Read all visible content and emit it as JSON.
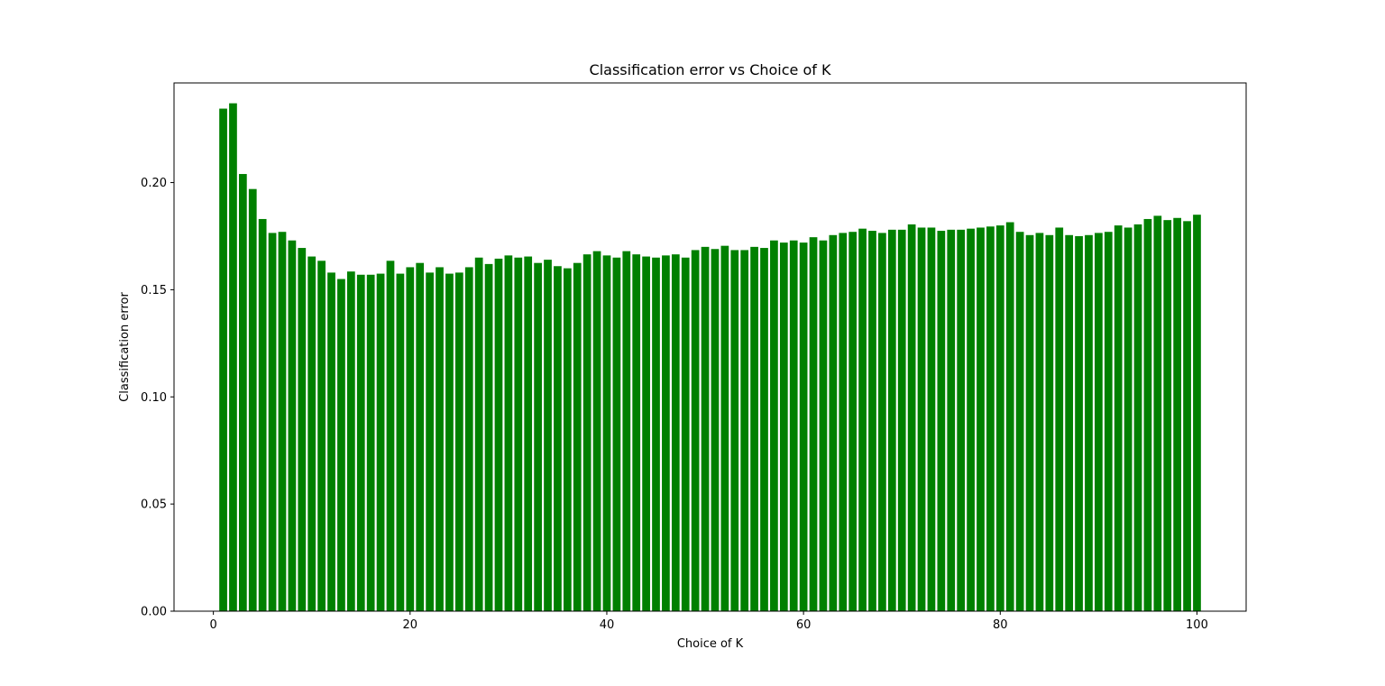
{
  "chart_data": {
    "type": "bar",
    "title": "Classification error vs Choice of K",
    "xlabel": "Choice of K",
    "ylabel": "Classification error",
    "xlim": [
      -4,
      105
    ],
    "ylim": [
      0,
      0.2465
    ],
    "xticks": [
      0,
      20,
      40,
      60,
      80,
      100
    ],
    "xtick_labels": [
      "0",
      "20",
      "40",
      "60",
      "80",
      "100"
    ],
    "yticks": [
      0.0,
      0.05,
      0.1,
      0.15,
      0.2
    ],
    "ytick_labels": [
      "0.00",
      "0.05",
      "0.10",
      "0.15",
      "0.20"
    ],
    "bar_color": "#008000",
    "grid": false,
    "x": [
      1,
      2,
      3,
      4,
      5,
      6,
      7,
      8,
      9,
      10,
      11,
      12,
      13,
      14,
      15,
      16,
      17,
      18,
      19,
      20,
      21,
      22,
      23,
      24,
      25,
      26,
      27,
      28,
      29,
      30,
      31,
      32,
      33,
      34,
      35,
      36,
      37,
      38,
      39,
      40,
      41,
      42,
      43,
      44,
      45,
      46,
      47,
      48,
      49,
      50,
      51,
      52,
      53,
      54,
      55,
      56,
      57,
      58,
      59,
      60,
      61,
      62,
      63,
      64,
      65,
      66,
      67,
      68,
      69,
      70,
      71,
      72,
      73,
      74,
      75,
      76,
      77,
      78,
      79,
      80,
      81,
      82,
      83,
      84,
      85,
      86,
      87,
      88,
      89,
      90,
      91,
      92,
      93,
      94,
      95,
      96,
      97,
      98,
      99,
      100
    ],
    "values": [
      0.2345,
      0.237,
      0.204,
      0.197,
      0.183,
      0.1765,
      0.177,
      0.173,
      0.1695,
      0.1655,
      0.1635,
      0.158,
      0.155,
      0.1585,
      0.157,
      0.157,
      0.1575,
      0.1635,
      0.1575,
      0.1605,
      0.1625,
      0.158,
      0.1605,
      0.1575,
      0.158,
      0.1605,
      0.165,
      0.162,
      0.1645,
      0.166,
      0.165,
      0.1655,
      0.1625,
      0.164,
      0.161,
      0.16,
      0.1625,
      0.1665,
      0.168,
      0.166,
      0.165,
      0.168,
      0.1665,
      0.1655,
      0.165,
      0.166,
      0.1665,
      0.165,
      0.1685,
      0.17,
      0.169,
      0.1705,
      0.1685,
      0.1685,
      0.17,
      0.1695,
      0.173,
      0.172,
      0.173,
      0.172,
      0.1745,
      0.173,
      0.1755,
      0.1765,
      0.177,
      0.1785,
      0.1775,
      0.1765,
      0.178,
      0.178,
      0.1805,
      0.179,
      0.179,
      0.1775,
      0.178,
      0.178,
      0.1785,
      0.179,
      0.1795,
      0.18,
      0.1815,
      0.177,
      0.1755,
      0.1765,
      0.1755,
      0.179,
      0.1755,
      0.175,
      0.1755,
      0.1765,
      0.177,
      0.18,
      0.179,
      0.1805,
      0.183,
      0.1845,
      0.1825,
      0.1835,
      0.182,
      0.185
    ]
  }
}
